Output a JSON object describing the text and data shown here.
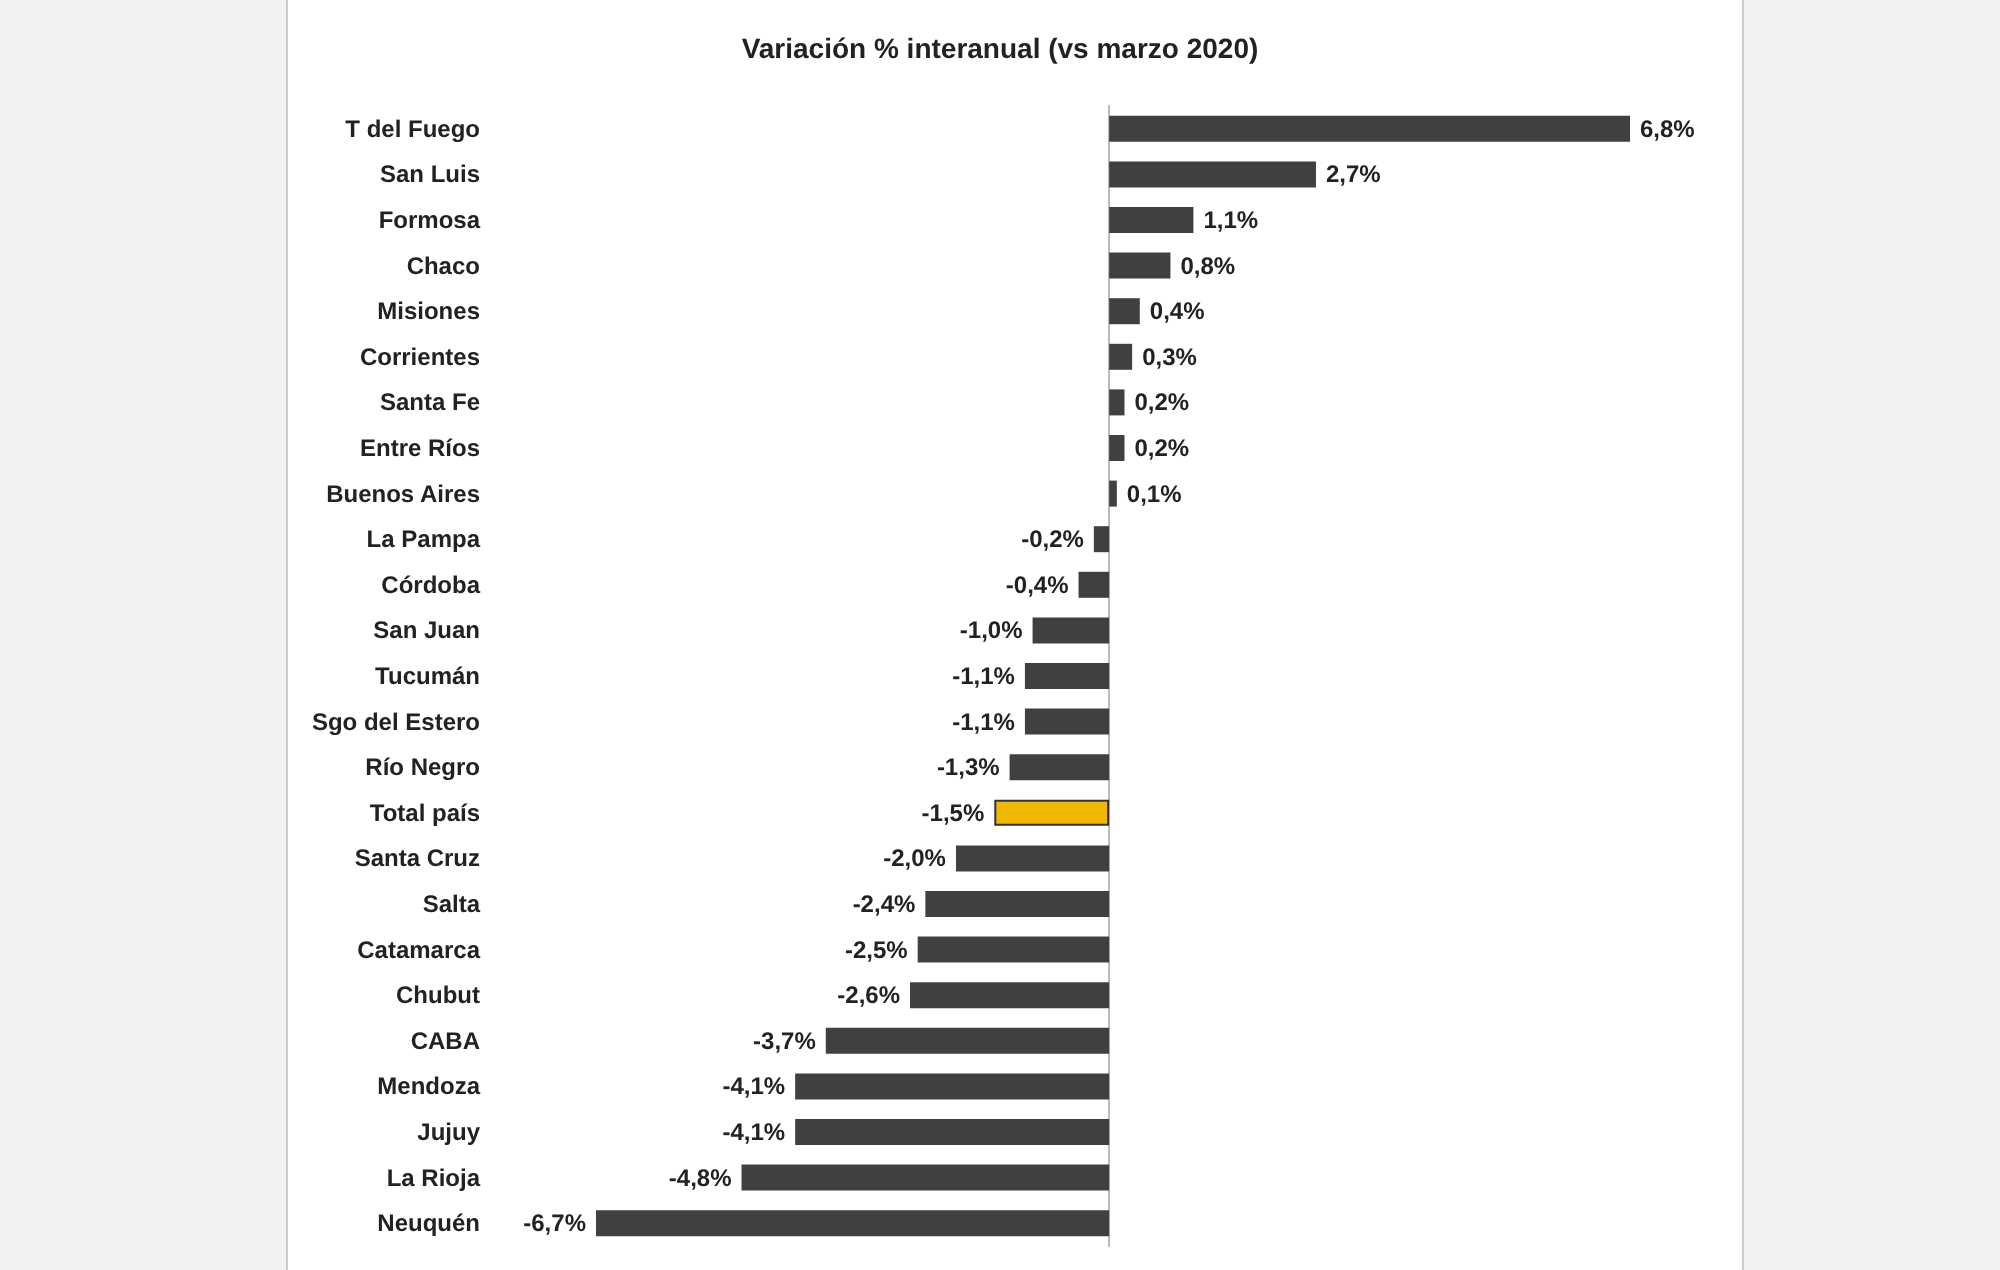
{
  "chart_data": {
    "type": "bar",
    "orientation": "horizontal",
    "title": "Variación % interanual (vs marzo 2020)",
    "categories": [
      "T del Fuego",
      "San Luis",
      "Formosa",
      "Chaco",
      "Misiones",
      "Corrientes",
      "Santa Fe",
      "Entre Ríos",
      "Buenos Aires",
      "La Pampa",
      "Córdoba",
      "San Juan",
      "Tucumán",
      "Sgo del Estero",
      "Río Negro",
      "Total país",
      "Santa Cruz",
      "Salta",
      "Catamarca",
      "Chubut",
      "CABA",
      "Mendoza",
      "Jujuy",
      "La Rioja",
      "Neuquén"
    ],
    "values": [
      6.8,
      2.7,
      1.1,
      0.8,
      0.4,
      0.3,
      0.2,
      0.2,
      0.1,
      -0.2,
      -0.4,
      -1.0,
      -1.1,
      -1.1,
      -1.3,
      -1.5,
      -2.0,
      -2.4,
      -2.5,
      -2.6,
      -3.7,
      -4.1,
      -4.1,
      -4.8,
      -6.7
    ],
    "value_labels": [
      "6,8%",
      "2,7%",
      "1,1%",
      "0,8%",
      "0,4%",
      "0,3%",
      "0,2%",
      "0,2%",
      "0,1%",
      "-0,2%",
      "-0,4%",
      "-1,0%",
      "-1,1%",
      "-1,1%",
      "-1,3%",
      "-1,5%",
      "-2,0%",
      "-2,4%",
      "-2,5%",
      "-2,6%",
      "-3,7%",
      "-4,1%",
      "-4,1%",
      "-4,8%",
      "-6,7%"
    ],
    "colors": [
      "#404040",
      "#404040",
      "#404040",
      "#404040",
      "#404040",
      "#404040",
      "#404040",
      "#404040",
      "#404040",
      "#404040",
      "#404040",
      "#404040",
      "#404040",
      "#404040",
      "#404040",
      "#f2b705",
      "#404040",
      "#404040",
      "#404040",
      "#404040",
      "#404040",
      "#404040",
      "#404040",
      "#404040",
      "#404040"
    ]
  }
}
